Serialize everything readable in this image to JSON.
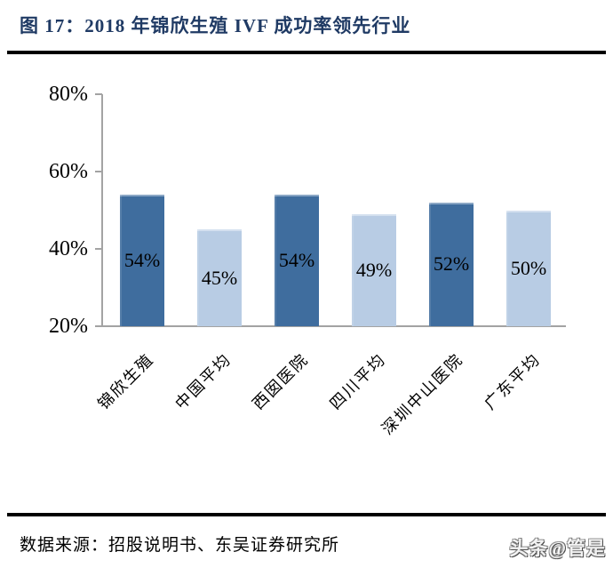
{
  "figure": {
    "title": "图 17：2018 年锦欣生殖 IVF 成功率领先行业",
    "source": "数据来源：招股说明书、东吴证券研究所",
    "watermark": "头条@管是"
  },
  "chart_data": {
    "type": "bar",
    "title": "2018 年锦欣生殖 IVF 成功率领先行业",
    "categories": [
      "锦欣生殖",
      "中国平均",
      "西囡医院",
      "四川平均",
      "深圳中山医院",
      "广东平均"
    ],
    "values": [
      54,
      45,
      54,
      49,
      52,
      50
    ],
    "labels": [
      "54%",
      "45%",
      "54%",
      "49%",
      "52%",
      "50%"
    ],
    "bar_colors": [
      "#3f6d9e",
      "#b8cce4",
      "#3f6d9e",
      "#b8cce4",
      "#3f6d9e",
      "#b8cce4"
    ],
    "xlabel": "",
    "ylabel": "",
    "ylim": [
      20,
      80
    ],
    "yticks": [
      "80%",
      "60%",
      "40%",
      "20%"
    ],
    "ytick_values": [
      80,
      60,
      40,
      20
    ],
    "grid": false,
    "legend_position": "none",
    "value_labels_position": "inside-center",
    "category_label_rotation_deg": 45,
    "colors": {
      "dark_bar": "#3f6d9e",
      "light_bar": "#b8cce4",
      "axis": "#a3a3a3",
      "title_text": "#1f3a64",
      "label_text": "#000000",
      "rule": "#000000"
    }
  }
}
